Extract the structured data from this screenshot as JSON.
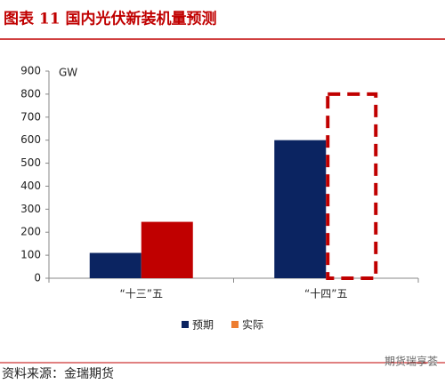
{
  "chart_data": {
    "type": "bar",
    "title": "图表 11  国内光伏新装机量预测",
    "unit_label": "GW",
    "categories": [
      "“十三”五",
      "“十四”五"
    ],
    "series": [
      {
        "name": "预期",
        "color": "#0b2461",
        "values": [
          110,
          600
        ]
      },
      {
        "name": "实际",
        "color": "#c00000",
        "legend_color": "#ed7d31",
        "values": [
          245,
          800
        ],
        "dashed": [
          false,
          true
        ]
      }
    ],
    "ylim": [
      0,
      900
    ],
    "yticks": [
      0,
      100,
      200,
      300,
      400,
      500,
      600,
      700,
      800,
      900
    ],
    "legend": "bottom",
    "source": "资料来源：金瑞期货",
    "watermark": "期货瑞享荟"
  }
}
